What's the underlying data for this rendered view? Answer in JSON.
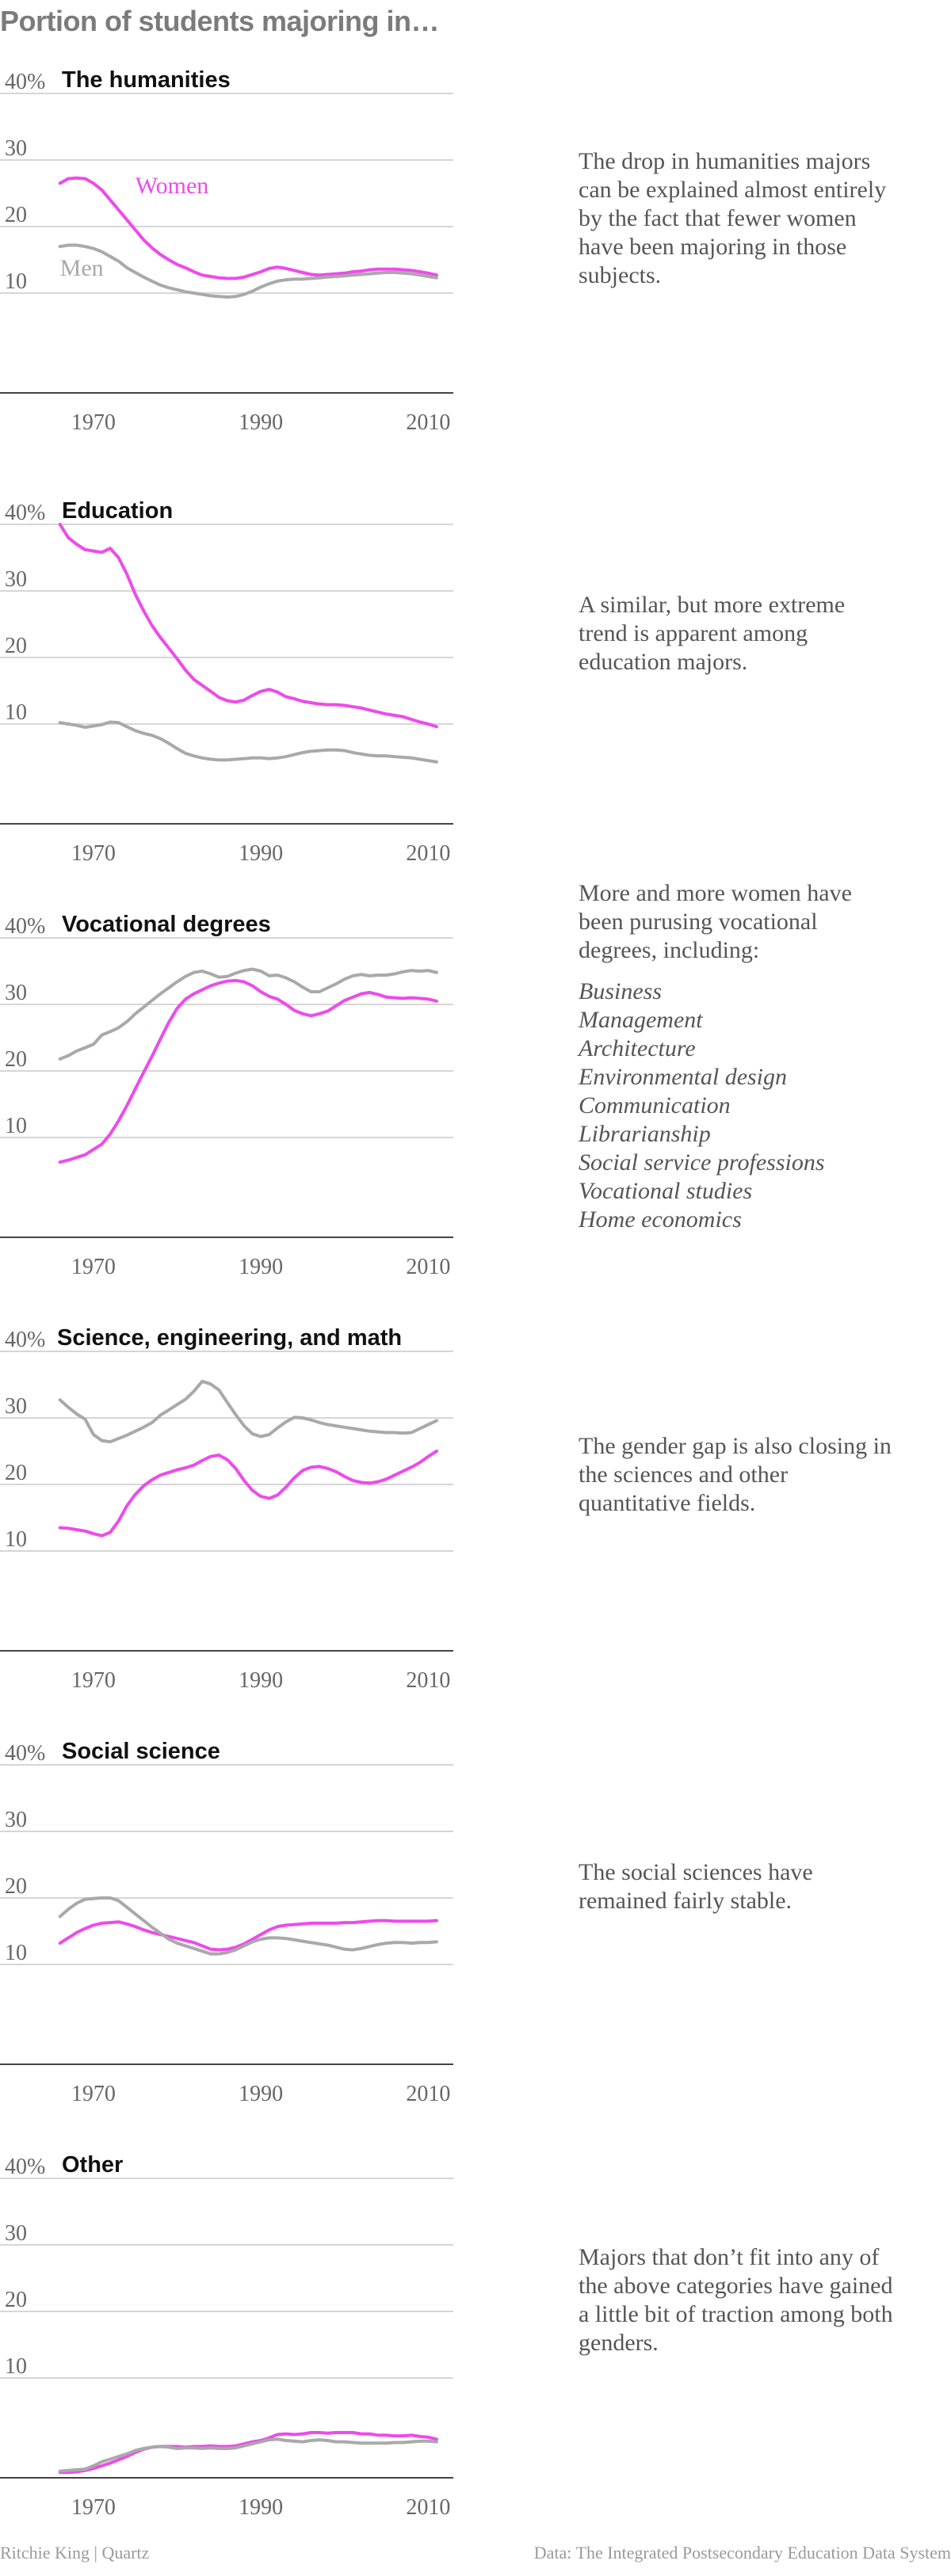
{
  "title": "Portion of students majoring in…",
  "colors": {
    "women": "#ee4aec",
    "men": "#a9a9a9",
    "axis": "#444444",
    "grid": "#d6d6d6",
    "tick_text": "#666666",
    "label_text": "#111111"
  },
  "credit": "Ritchie King | Quartz",
  "source": "Data: The Integrated Postsecondary Education Data System",
  "panels": [
    {
      "description": "The drop in humanities majors can be explained almost entirely by the fact that fewer women have been majoring in those subjects.",
      "list": []
    },
    {
      "description": "A similar, but more extreme trend is apparent among education majors.",
      "list": []
    },
    {
      "description": "More and more women have been purusing vocational degrees, including:",
      "list": [
        "Business",
        "Management",
        "Architecture",
        "Environmental design",
        "Communication",
        "Librarianship",
        "Social service professions",
        "Vocational studies",
        "Home economics"
      ]
    },
    {
      "description": "The gender gap is also closing in the sciences and other quantitative fields.",
      "list": []
    },
    {
      "description": "The social sciences have remained fairly stable.",
      "list": []
    },
    {
      "description": "Majors that don’t fit into any of the above categories have gained a little bit of traction among both genders.",
      "list": []
    }
  ],
  "chart_data": [
    {
      "type": "line",
      "title": "The humanities",
      "xlim": [
        1963,
        2013
      ],
      "ylim": [
        -5,
        40
      ],
      "x_ticks": [
        1970,
        1990,
        2010
      ],
      "x_tick_labels": [
        "1970",
        "1990",
        "2010"
      ],
      "y_ticks": [
        10,
        20,
        30,
        40
      ],
      "y_tick_labels": [
        "10",
        "20",
        "30",
        "40%"
      ],
      "grid": true,
      "x": [
        1966,
        1967,
        1968,
        1969,
        1970,
        1971,
        1972,
        1973,
        1974,
        1975,
        1976,
        1977,
        1978,
        1979,
        1980,
        1981,
        1982,
        1983,
        1984,
        1985,
        1986,
        1987,
        1988,
        1989,
        1990,
        1991,
        1992,
        1993,
        1994,
        1995,
        1996,
        1997,
        1998,
        1999,
        2000,
        2001,
        2002,
        2003,
        2004,
        2005,
        2006,
        2007,
        2008,
        2009,
        2010,
        2011
      ],
      "series": [
        {
          "name": "Women",
          "label_at": [
            1975,
            25
          ],
          "values": [
            26.5,
            27.2,
            27.3,
            27.2,
            26.5,
            25.5,
            24.0,
            22.5,
            21.0,
            19.5,
            18.0,
            16.8,
            15.8,
            15.0,
            14.3,
            13.8,
            13.2,
            12.7,
            12.5,
            12.3,
            12.2,
            12.2,
            12.4,
            12.8,
            13.2,
            13.7,
            13.9,
            13.7,
            13.4,
            13.1,
            12.8,
            12.7,
            12.8,
            12.9,
            13.0,
            13.2,
            13.3,
            13.5,
            13.6,
            13.6,
            13.6,
            13.5,
            13.4,
            13.2,
            13.0,
            12.7
          ]
        },
        {
          "name": "Men",
          "label_at": [
            1966,
            12.6
          ],
          "values": [
            17.0,
            17.2,
            17.2,
            17.0,
            16.7,
            16.2,
            15.5,
            14.8,
            13.8,
            13.1,
            12.4,
            11.8,
            11.2,
            10.8,
            10.5,
            10.2,
            10.0,
            9.8,
            9.6,
            9.5,
            9.4,
            9.5,
            9.8,
            10.3,
            10.9,
            11.4,
            11.8,
            12.0,
            12.1,
            12.1,
            12.2,
            12.3,
            12.4,
            12.5,
            12.6,
            12.7,
            12.8,
            12.9,
            13.0,
            13.1,
            13.1,
            13.0,
            12.9,
            12.7,
            12.5,
            12.3
          ]
        }
      ]
    },
    {
      "type": "line",
      "title": "Education",
      "xlim": [
        1963,
        2013
      ],
      "ylim": [
        -5,
        40
      ],
      "x_ticks": [
        1970,
        1990,
        2010
      ],
      "x_tick_labels": [
        "1970",
        "1990",
        "2010"
      ],
      "y_ticks": [
        10,
        20,
        30,
        40
      ],
      "y_tick_labels": [
        "10",
        "20",
        "30",
        "40%"
      ],
      "grid": true,
      "x": [
        1966,
        1967,
        1968,
        1969,
        1970,
        1971,
        1972,
        1973,
        1974,
        1975,
        1976,
        1977,
        1978,
        1979,
        1980,
        1981,
        1982,
        1983,
        1984,
        1985,
        1986,
        1987,
        1988,
        1989,
        1990,
        1991,
        1992,
        1993,
        1994,
        1995,
        1996,
        1997,
        1998,
        1999,
        2000,
        2001,
        2002,
        2003,
        2004,
        2005,
        2006,
        2007,
        2008,
        2009,
        2010,
        2011
      ],
      "series": [
        {
          "name": "Women",
          "values": [
            40.0,
            38.0,
            37.0,
            36.2,
            36.0,
            35.8,
            36.4,
            35.0,
            32.5,
            29.5,
            27.0,
            24.8,
            23.0,
            21.4,
            19.8,
            18.1,
            16.7,
            15.8,
            14.9,
            14.0,
            13.5,
            13.3,
            13.6,
            14.3,
            14.9,
            15.2,
            14.8,
            14.1,
            13.8,
            13.4,
            13.2,
            13.0,
            12.9,
            12.9,
            12.8,
            12.6,
            12.4,
            12.1,
            11.8,
            11.5,
            11.3,
            11.1,
            10.7,
            10.3,
            10.0,
            9.6
          ]
        },
        {
          "name": "Men",
          "values": [
            10.2,
            10.0,
            9.8,
            9.5,
            9.7,
            9.9,
            10.3,
            10.2,
            9.6,
            9.0,
            8.6,
            8.3,
            7.8,
            7.1,
            6.3,
            5.6,
            5.2,
            4.9,
            4.7,
            4.6,
            4.6,
            4.7,
            4.8,
            4.9,
            4.9,
            4.8,
            4.9,
            5.1,
            5.4,
            5.7,
            5.9,
            6.0,
            6.1,
            6.1,
            6.0,
            5.7,
            5.5,
            5.3,
            5.2,
            5.2,
            5.1,
            5.0,
            4.9,
            4.7,
            4.5,
            4.3
          ]
        }
      ]
    },
    {
      "type": "line",
      "title": "Vocational degrees",
      "xlim": [
        1963,
        2013
      ],
      "ylim": [
        -5,
        40
      ],
      "x_ticks": [
        1970,
        1990,
        2010
      ],
      "x_tick_labels": [
        "1970",
        "1990",
        "2010"
      ],
      "y_ticks": [
        10,
        20,
        30,
        40
      ],
      "y_tick_labels": [
        "10",
        "20",
        "30",
        "40%"
      ],
      "grid": true,
      "x": [
        1966,
        1967,
        1968,
        1969,
        1970,
        1971,
        1972,
        1973,
        1974,
        1975,
        1976,
        1977,
        1978,
        1979,
        1980,
        1981,
        1982,
        1983,
        1984,
        1985,
        1986,
        1987,
        1988,
        1989,
        1990,
        1991,
        1992,
        1993,
        1994,
        1995,
        1996,
        1997,
        1998,
        1999,
        2000,
        2001,
        2002,
        2003,
        2004,
        2005,
        2006,
        2007,
        2008,
        2009,
        2010,
        2011
      ],
      "series": [
        {
          "name": "Women",
          "values": [
            6.3,
            6.6,
            7.0,
            7.4,
            8.2,
            9.0,
            10.5,
            12.5,
            14.8,
            17.3,
            19.8,
            22.2,
            24.8,
            27.3,
            29.4,
            30.8,
            31.6,
            32.2,
            32.8,
            33.2,
            33.5,
            33.6,
            33.4,
            32.8,
            31.9,
            31.2,
            30.8,
            30.0,
            29.1,
            28.6,
            28.3,
            28.6,
            29.0,
            29.8,
            30.6,
            31.1,
            31.6,
            31.8,
            31.5,
            31.1,
            31.0,
            30.9,
            31.0,
            30.9,
            30.8,
            30.5
          ]
        },
        {
          "name": "Men",
          "values": [
            21.8,
            22.3,
            23.0,
            23.5,
            24.0,
            25.4,
            25.9,
            26.5,
            27.4,
            28.6,
            29.6,
            30.6,
            31.6,
            32.5,
            33.4,
            34.2,
            34.8,
            35.0,
            34.6,
            34.1,
            34.2,
            34.7,
            35.1,
            35.3,
            35.0,
            34.3,
            34.4,
            34.0,
            33.4,
            32.6,
            31.9,
            31.9,
            32.5,
            33.1,
            33.8,
            34.3,
            34.5,
            34.3,
            34.4,
            34.4,
            34.6,
            34.9,
            35.1,
            35.0,
            35.1,
            34.8
          ]
        }
      ]
    },
    {
      "type": "line",
      "title": "Science, engineering, and math",
      "xlim": [
        1963,
        2013
      ],
      "ylim": [
        -5,
        40
      ],
      "x_ticks": [
        1970,
        1990,
        2010
      ],
      "x_tick_labels": [
        "1970",
        "1990",
        "2010"
      ],
      "y_ticks": [
        10,
        20,
        30,
        40
      ],
      "y_tick_labels": [
        "10",
        "20",
        "30",
        "40%"
      ],
      "grid": true,
      "x": [
        1966,
        1967,
        1968,
        1969,
        1970,
        1971,
        1972,
        1973,
        1974,
        1975,
        1976,
        1977,
        1978,
        1979,
        1980,
        1981,
        1982,
        1983,
        1984,
        1985,
        1986,
        1987,
        1988,
        1989,
        1990,
        1991,
        1992,
        1993,
        1994,
        1995,
        1996,
        1997,
        1998,
        1999,
        2000,
        2001,
        2002,
        2003,
        2004,
        2005,
        2006,
        2007,
        2008,
        2009,
        2010,
        2011
      ],
      "series": [
        {
          "name": "Women",
          "values": [
            13.5,
            13.4,
            13.2,
            13.0,
            12.6,
            12.3,
            12.8,
            14.5,
            16.8,
            18.5,
            19.8,
            20.7,
            21.4,
            21.8,
            22.2,
            22.5,
            22.9,
            23.6,
            24.2,
            24.4,
            23.7,
            22.4,
            20.6,
            19.1,
            18.2,
            17.9,
            18.4,
            19.6,
            21.0,
            22.1,
            22.6,
            22.7,
            22.4,
            21.9,
            21.2,
            20.6,
            20.3,
            20.2,
            20.4,
            20.8,
            21.4,
            22.0,
            22.6,
            23.3,
            24.2,
            25.0
          ]
        },
        {
          "name": "Men",
          "values": [
            32.7,
            31.6,
            30.6,
            29.8,
            27.5,
            26.6,
            26.4,
            26.9,
            27.4,
            28.0,
            28.6,
            29.3,
            30.4,
            31.2,
            32.0,
            32.8,
            34.0,
            35.5,
            35.1,
            34.2,
            32.3,
            30.5,
            28.8,
            27.6,
            27.2,
            27.5,
            28.5,
            29.4,
            30.1,
            30.0,
            29.7,
            29.3,
            29.0,
            28.8,
            28.6,
            28.4,
            28.2,
            28.0,
            27.9,
            27.8,
            27.8,
            27.7,
            27.8,
            28.4,
            29.0,
            29.6
          ]
        }
      ]
    },
    {
      "type": "line",
      "title": "Social science",
      "xlim": [
        1963,
        2013
      ],
      "ylim": [
        -5,
        40
      ],
      "x_ticks": [
        1970,
        1990,
        2010
      ],
      "x_tick_labels": [
        "1970",
        "1990",
        "2010"
      ],
      "y_ticks": [
        10,
        20,
        30,
        40
      ],
      "y_tick_labels": [
        "10",
        "20",
        "30",
        "40%"
      ],
      "grid": true,
      "x": [
        1966,
        1967,
        1968,
        1969,
        1970,
        1971,
        1972,
        1973,
        1974,
        1975,
        1976,
        1977,
        1978,
        1979,
        1980,
        1981,
        1982,
        1983,
        1984,
        1985,
        1986,
        1987,
        1988,
        1989,
        1990,
        1991,
        1992,
        1993,
        1994,
        1995,
        1996,
        1997,
        1998,
        1999,
        2000,
        2001,
        2002,
        2003,
        2004,
        2005,
        2006,
        2007,
        2008,
        2009,
        2010,
        2011
      ],
      "series": [
        {
          "name": "Women",
          "values": [
            13.2,
            14.0,
            14.8,
            15.4,
            15.9,
            16.2,
            16.3,
            16.4,
            16.1,
            15.7,
            15.2,
            14.8,
            14.5,
            14.2,
            13.9,
            13.6,
            13.3,
            12.8,
            12.3,
            12.2,
            12.3,
            12.6,
            13.1,
            13.8,
            14.5,
            15.2,
            15.7,
            15.9,
            16.0,
            16.1,
            16.2,
            16.2,
            16.2,
            16.2,
            16.3,
            16.3,
            16.4,
            16.5,
            16.6,
            16.6,
            16.5,
            16.5,
            16.5,
            16.5,
            16.5,
            16.6
          ]
        },
        {
          "name": "Men",
          "values": [
            17.2,
            18.3,
            19.2,
            19.8,
            19.9,
            20.0,
            20.0,
            19.6,
            18.6,
            17.6,
            16.6,
            15.6,
            14.7,
            13.8,
            13.2,
            12.8,
            12.4,
            12.0,
            11.6,
            11.6,
            11.8,
            12.2,
            12.8,
            13.4,
            13.8,
            14.0,
            14.0,
            13.9,
            13.7,
            13.5,
            13.3,
            13.1,
            12.9,
            12.6,
            12.3,
            12.2,
            12.4,
            12.7,
            13.0,
            13.2,
            13.3,
            13.3,
            13.2,
            13.3,
            13.3,
            13.4
          ]
        }
      ]
    },
    {
      "type": "line",
      "title": "Other",
      "xlim": [
        1963,
        2013
      ],
      "ylim": [
        -5,
        40
      ],
      "x_ticks": [
        1970,
        1990,
        2010
      ],
      "x_tick_labels": [
        "1970",
        "1990",
        "2010"
      ],
      "y_ticks": [
        10,
        20,
        30,
        40
      ],
      "y_tick_labels": [
        "10",
        "20",
        "30",
        "40%"
      ],
      "grid": true,
      "x": [
        1966,
        1967,
        1968,
        1969,
        1970,
        1971,
        1972,
        1973,
        1974,
        1975,
        1976,
        1977,
        1978,
        1979,
        1980,
        1981,
        1982,
        1983,
        1984,
        1985,
        1986,
        1987,
        1988,
        1989,
        1990,
        1991,
        1992,
        1993,
        1994,
        1995,
        1996,
        1997,
        1998,
        1999,
        2000,
        2001,
        2002,
        2003,
        2004,
        2005,
        2006,
        2007,
        2008,
        2009,
        2010,
        2011
      ],
      "series": [
        {
          "name": "Women",
          "values": [
            -4.2,
            -4.2,
            -4.1,
            -3.9,
            -3.6,
            -3.2,
            -2.8,
            -2.3,
            -1.8,
            -1.2,
            -0.7,
            -0.4,
            -0.3,
            -0.3,
            -0.3,
            -0.4,
            -0.3,
            -0.3,
            -0.2,
            -0.3,
            -0.3,
            -0.2,
            0.1,
            0.4,
            0.6,
            1.0,
            1.5,
            1.6,
            1.5,
            1.6,
            1.8,
            1.8,
            1.7,
            1.8,
            1.8,
            1.8,
            1.6,
            1.6,
            1.4,
            1.4,
            1.3,
            1.3,
            1.4,
            1.2,
            1.1,
            0.8
          ]
        },
        {
          "name": "Men",
          "values": [
            -4.0,
            -3.9,
            -3.8,
            -3.7,
            -3.2,
            -2.6,
            -2.2,
            -1.8,
            -1.4,
            -0.9,
            -0.6,
            -0.4,
            -0.3,
            -0.4,
            -0.6,
            -0.5,
            -0.5,
            -0.6,
            -0.5,
            -0.6,
            -0.6,
            -0.5,
            -0.2,
            0.1,
            0.4,
            0.7,
            0.8,
            0.6,
            0.5,
            0.4,
            0.6,
            0.7,
            0.6,
            0.4,
            0.4,
            0.3,
            0.2,
            0.2,
            0.2,
            0.2,
            0.3,
            0.3,
            0.4,
            0.5,
            0.5,
            0.4
          ]
        }
      ]
    }
  ]
}
